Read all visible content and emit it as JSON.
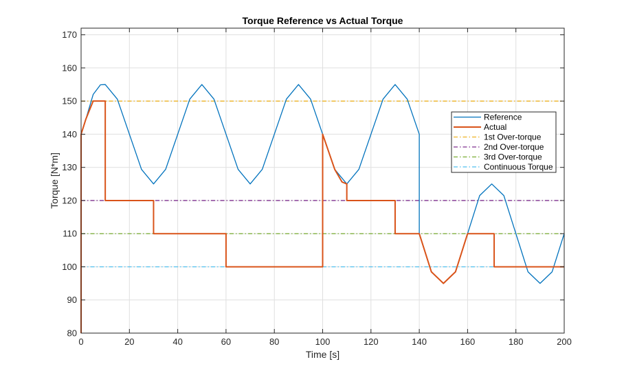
{
  "chart_data": {
    "type": "line",
    "title": "Torque Reference vs Actual Torque",
    "xlabel": "Time [s]",
    "ylabel": "Torque [N*m]",
    "xlim": [
      0,
      200
    ],
    "ylim": [
      80,
      172
    ],
    "xticks": [
      0,
      20,
      40,
      60,
      80,
      100,
      120,
      140,
      160,
      180,
      200
    ],
    "yticks": [
      80,
      90,
      100,
      110,
      120,
      130,
      140,
      150,
      160,
      170
    ],
    "grid": true,
    "legend_position": "right",
    "series": [
      {
        "name": "Reference",
        "color": "#0072BD",
        "style": "solid",
        "points": [
          [
            0,
            80
          ],
          [
            0,
            140
          ],
          [
            2,
            144.6
          ],
          [
            5,
            152
          ],
          [
            8,
            154.9
          ],
          [
            10,
            155
          ],
          [
            15,
            150.6
          ],
          [
            20,
            140
          ],
          [
            25,
            129.4
          ],
          [
            30,
            125
          ],
          [
            35,
            129.4
          ],
          [
            40,
            140
          ],
          [
            45,
            150.6
          ],
          [
            50,
            155
          ],
          [
            55,
            150.6
          ],
          [
            60,
            140
          ],
          [
            65,
            129.4
          ],
          [
            70,
            125
          ],
          [
            75,
            129.4
          ],
          [
            80,
            140
          ],
          [
            85,
            150.6
          ],
          [
            90,
            155
          ],
          [
            95,
            150.6
          ],
          [
            100,
            140
          ],
          [
            105,
            129.4
          ],
          [
            110,
            125
          ],
          [
            115,
            129.4
          ],
          [
            120,
            140
          ],
          [
            125,
            150.6
          ],
          [
            130,
            155
          ],
          [
            135,
            150.6
          ],
          [
            140,
            140
          ],
          [
            140,
            110
          ],
          [
            145,
            98.5
          ],
          [
            150,
            95
          ],
          [
            155,
            98.5
          ],
          [
            160,
            110
          ],
          [
            165,
            121.5
          ],
          [
            170,
            125
          ],
          [
            175,
            121.5
          ],
          [
            180,
            110
          ],
          [
            185,
            98.5
          ],
          [
            190,
            95
          ],
          [
            195,
            98.5
          ],
          [
            200,
            110
          ]
        ]
      },
      {
        "name": "Actual",
        "color": "#D95319",
        "style": "solid",
        "points": [
          [
            0,
            80
          ],
          [
            0,
            140
          ],
          [
            2,
            144.6
          ],
          [
            5,
            150
          ],
          [
            10,
            150
          ],
          [
            10,
            120
          ],
          [
            30,
            120
          ],
          [
            30,
            110
          ],
          [
            60,
            110
          ],
          [
            60,
            100
          ],
          [
            100,
            100
          ],
          [
            100,
            140
          ],
          [
            105,
            129.4
          ],
          [
            108,
            125.6
          ],
          [
            110,
            125
          ],
          [
            110,
            120
          ],
          [
            130,
            120
          ],
          [
            130,
            110
          ],
          [
            140,
            110
          ],
          [
            145,
            98.5
          ],
          [
            150,
            95
          ],
          [
            155,
            98.5
          ],
          [
            160,
            110
          ],
          [
            171,
            110
          ],
          [
            171,
            100
          ],
          [
            200,
            100
          ]
        ]
      },
      {
        "name": "1st Over-torque",
        "color": "#EDB120",
        "style": "dashdot",
        "points": [
          [
            0,
            150
          ],
          [
            200,
            150
          ]
        ]
      },
      {
        "name": "2nd Over-torque",
        "color": "#7E2F8E",
        "style": "dashdot",
        "points": [
          [
            0,
            120
          ],
          [
            200,
            120
          ]
        ]
      },
      {
        "name": "3rd Over-torque",
        "color": "#77AC30",
        "style": "dashdot",
        "points": [
          [
            0,
            110
          ],
          [
            200,
            110
          ]
        ]
      },
      {
        "name": "Continuous Torque",
        "color": "#4DBEEE",
        "style": "dashdot",
        "points": [
          [
            0,
            100
          ],
          [
            200,
            100
          ]
        ]
      }
    ]
  }
}
